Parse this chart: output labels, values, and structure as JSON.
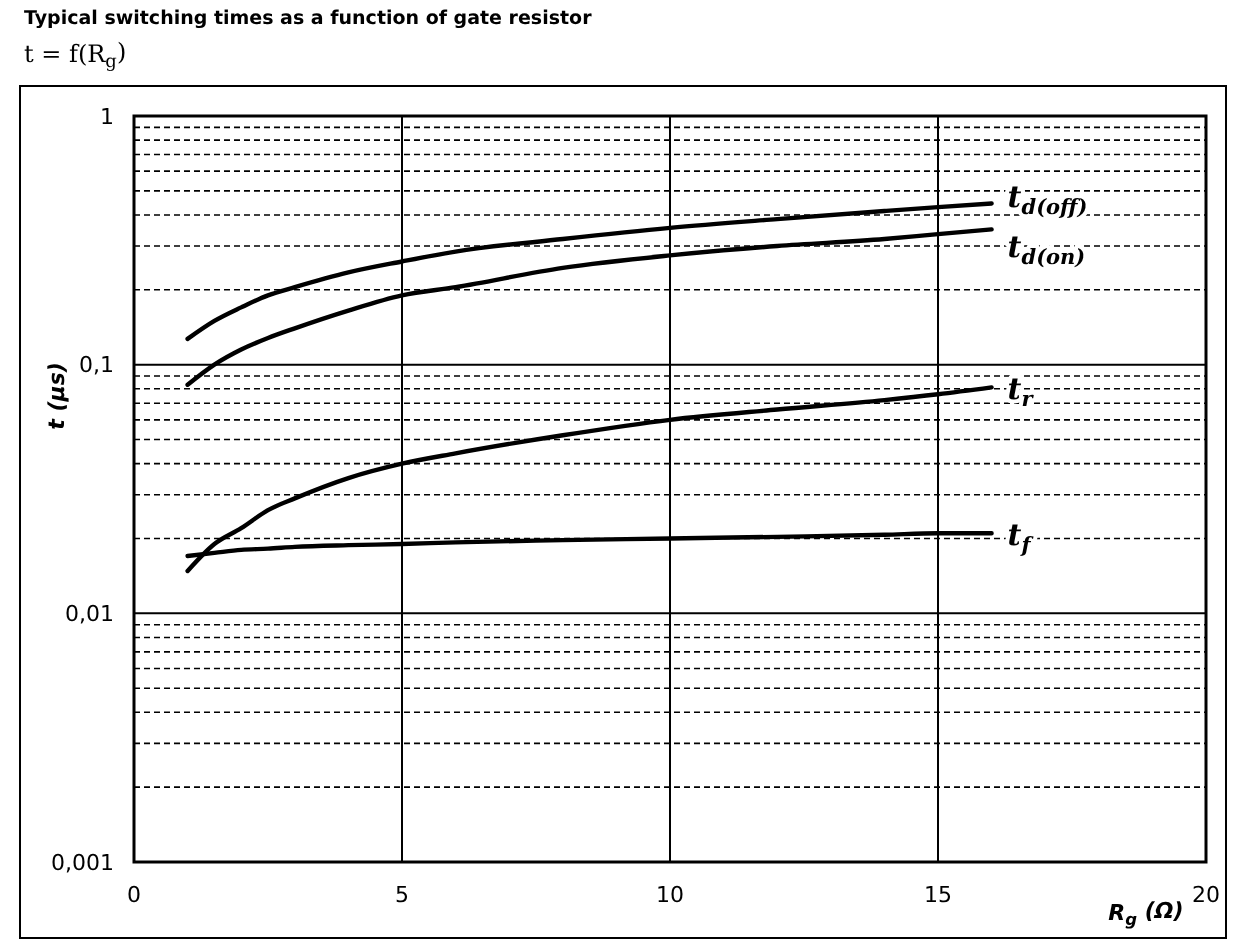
{
  "chart_data": {
    "type": "line",
    "title": "Typical switching times as a function of gate resistor",
    "subtitle": "t = f(R$_{g}$)",
    "xlabel": "R$_{g}$ (Ω)",
    "ylabel": "t (µs)",
    "log": "y",
    "grid": true,
    "xlim": [
      0,
      20
    ],
    "xticks": [
      0,
      5,
      10,
      15,
      20
    ],
    "ylim": [
      0.001,
      1
    ],
    "yticks": [
      {
        "value": 1,
        "label": "1"
      },
      {
        "value": 0.1,
        "label": "0,1"
      },
      {
        "value": 0.01,
        "label": "0,01"
      },
      {
        "value": 0.001,
        "label": "0,001"
      }
    ],
    "x": [
      1,
      1.5,
      2,
      2.5,
      3,
      4,
      5,
      6,
      8,
      10,
      12,
      14,
      15,
      16
    ],
    "series": [
      {
        "name": "t$_{d(off)}$",
        "color": "#000000",
        "values": [
          0.127,
          0.15,
          0.17,
          0.19,
          0.205,
          0.235,
          0.26,
          0.285,
          0.32,
          0.355,
          0.385,
          0.415,
          0.43,
          0.445
        ]
      },
      {
        "name": "t$_{d(on)}$",
        "color": "#000000",
        "values": [
          0.083,
          0.1,
          0.115,
          0.128,
          0.14,
          0.165,
          0.19,
          0.205,
          0.245,
          0.275,
          0.3,
          0.32,
          0.335,
          0.35
        ]
      },
      {
        "name": "t$_{r}$",
        "color": "#000000",
        "values": [
          0.0148,
          0.019,
          0.022,
          0.026,
          0.029,
          0.035,
          0.04,
          0.044,
          0.052,
          0.06,
          0.066,
          0.072,
          0.076,
          0.081
        ]
      },
      {
        "name": "t$_{f}$",
        "color": "#000000",
        "values": [
          0.017,
          0.0175,
          0.018,
          0.0182,
          0.0185,
          0.0188,
          0.019,
          0.0193,
          0.0197,
          0.02,
          0.0203,
          0.0207,
          0.021,
          0.021
        ]
      }
    ]
  }
}
